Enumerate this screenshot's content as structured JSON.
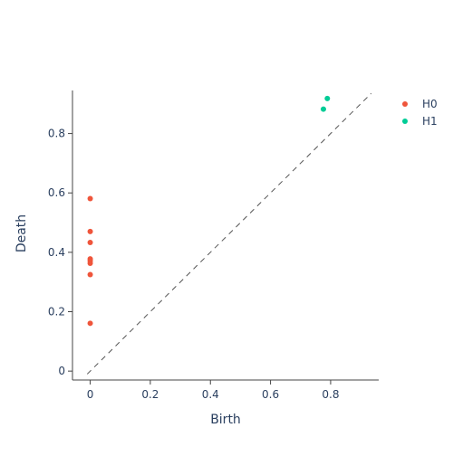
{
  "chart_data": {
    "type": "scatter",
    "title": "",
    "xlabel": "Birth",
    "ylabel": "Death",
    "xlim": [
      -0.059,
      0.96
    ],
    "ylim": [
      -0.03,
      0.945
    ],
    "x_ticks": [
      0,
      0.2,
      0.4,
      0.6,
      0.8
    ],
    "x_tick_labels": [
      "0",
      "0.2",
      "0.4",
      "0.6",
      "0.8"
    ],
    "y_ticks": [
      0,
      0.2,
      0.4,
      0.6,
      0.8
    ],
    "y_tick_labels": [
      "0",
      "0.2",
      "0.4",
      "0.6",
      "0.8"
    ],
    "grid": false,
    "legend_position": "top-right",
    "diagonal": {
      "from": [
        -0.01,
        -0.01
      ],
      "to": [
        0.935,
        0.935
      ],
      "style": "dashed",
      "color": "#555555"
    },
    "series": [
      {
        "name": "H0",
        "color": "#EF553B",
        "points": [
          {
            "x": 0,
            "y": 0.581
          },
          {
            "x": 0,
            "y": 0.47
          },
          {
            "x": 0,
            "y": 0.433
          },
          {
            "x": 0,
            "y": 0.378
          },
          {
            "x": 0,
            "y": 0.371
          },
          {
            "x": 0,
            "y": 0.363
          },
          {
            "x": 0,
            "y": 0.325
          },
          {
            "x": 0,
            "y": 0.161
          }
        ]
      },
      {
        "name": "H1",
        "color": "#00CC96",
        "points": [
          {
            "x": 0.789,
            "y": 0.918
          },
          {
            "x": 0.776,
            "y": 0.882
          }
        ]
      }
    ]
  }
}
